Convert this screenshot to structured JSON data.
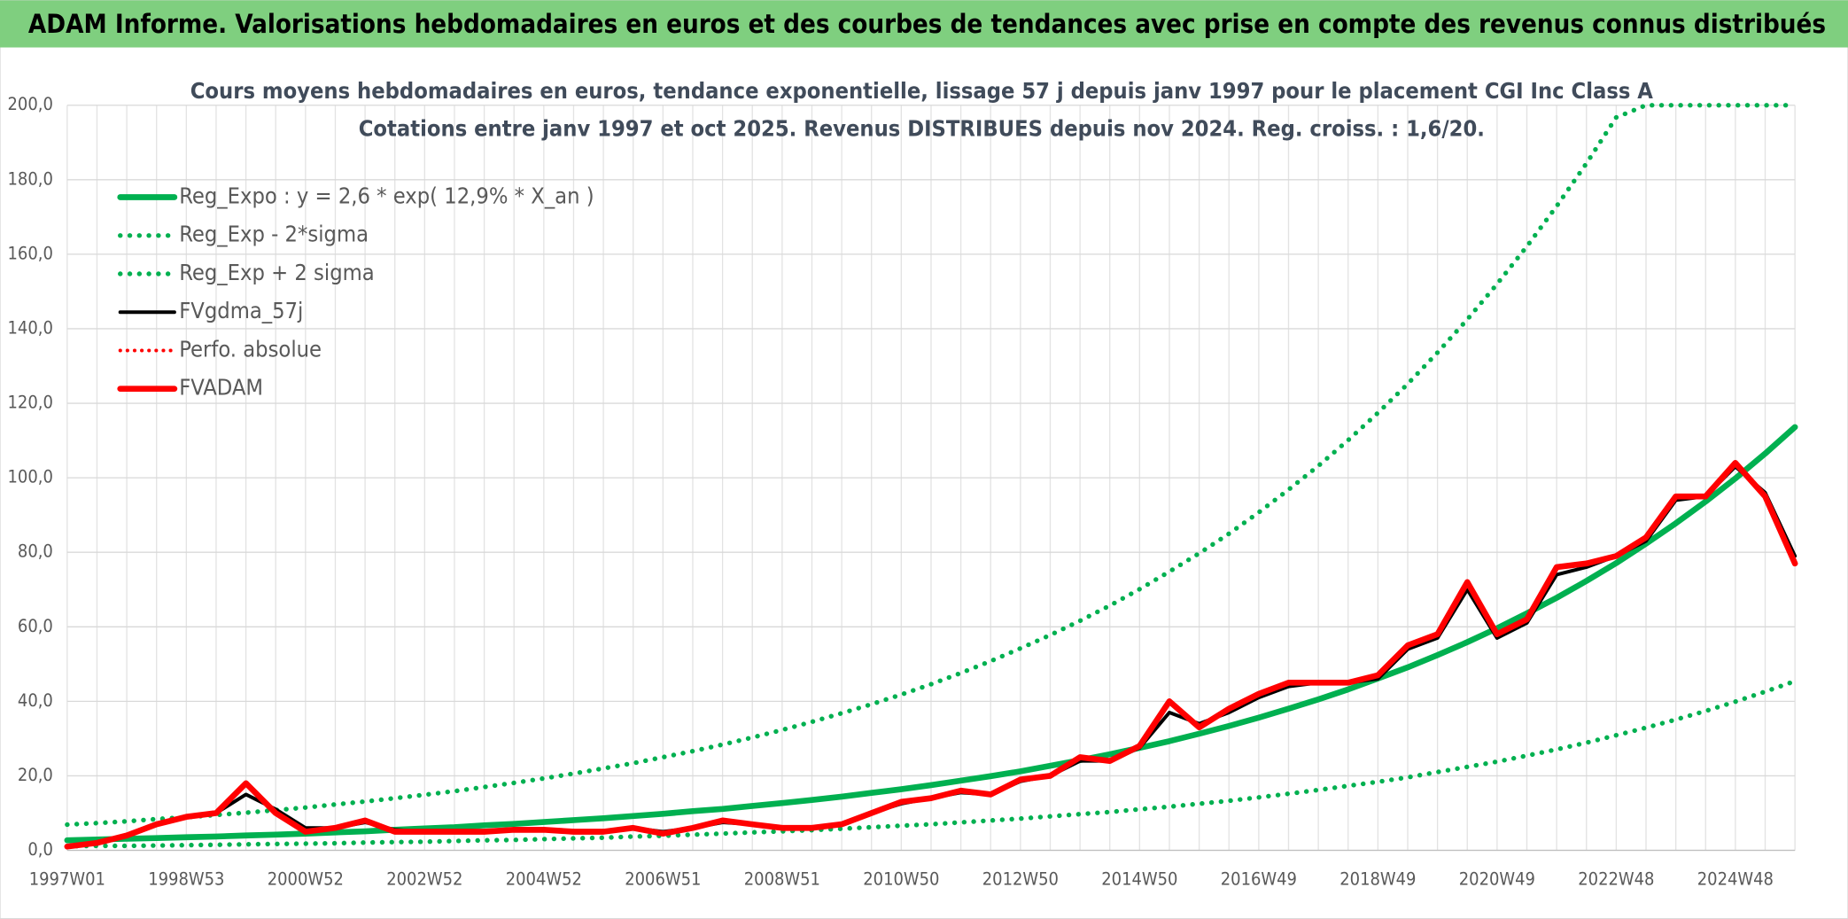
{
  "header": {
    "title": "ADAM Informe. Valorisations hebdomadaires en euros et des courbes de tendances avec prise en compte des revenus connus distribués"
  },
  "chart_data": {
    "type": "line",
    "title": "Cours moyens hebdomadaires en euros, tendance exponentielle, lissage 57 j depuis janv 1997 pour le placement CGI Inc Class A",
    "subtitle": "Cotations entre janv 1997 et oct 2025. Revenus DISTRIBUES depuis nov 2024. Reg. croiss. : 1,6/20.",
    "categories": [
      "1997W01",
      null,
      null,
      null,
      "1998W53",
      null,
      null,
      null,
      "2000W52",
      null,
      null,
      null,
      "2002W52",
      null,
      null,
      null,
      "2004W52",
      null,
      null,
      null,
      "2006W51",
      null,
      null,
      null,
      "2008W51",
      null,
      null,
      null,
      "2010W50",
      null,
      null,
      null,
      "2012W50",
      null,
      null,
      null,
      "2014W50",
      null,
      null,
      null,
      "2016W49",
      null,
      null,
      null,
      "2018W49",
      null,
      null,
      null,
      "2020W49",
      null,
      null,
      null,
      "2022W48",
      null,
      null,
      null,
      "2024W48",
      null,
      null
    ],
    "ylim": [
      0,
      200
    ],
    "yticks": [
      {
        "value": 0,
        "label": "0,0"
      },
      {
        "value": 20,
        "label": "20,0"
      },
      {
        "value": 40,
        "label": "40,0"
      },
      {
        "value": 60,
        "label": "60,0"
      },
      {
        "value": 80,
        "label": "80,0"
      },
      {
        "value": 100,
        "label": "100,0"
      },
      {
        "value": 120,
        "label": "120,0"
      },
      {
        "value": 140,
        "label": "140,0"
      },
      {
        "value": 160,
        "label": "160,0"
      },
      {
        "value": 180,
        "label": "180,0"
      },
      {
        "value": 200,
        "label": "200,0"
      }
    ],
    "grid": true,
    "legend": "top-left",
    "series": [
      {
        "name": "Reg_Expo : y = 2,6 * exp( 12,9% *  X_an )",
        "color": "#00b050",
        "style": "solid",
        "width": 5,
        "values": [
          2.7,
          2.9,
          3.1,
          3.3,
          3.5,
          3.7,
          4.0,
          4.2,
          4.5,
          4.8,
          5.1,
          5.5,
          5.9,
          6.2,
          6.7,
          7.1,
          7.6,
          8.1,
          8.6,
          9.2,
          9.8,
          10.5,
          11.1,
          11.9,
          12.7,
          13.5,
          14.4,
          15.4,
          16.4,
          17.5,
          18.7,
          19.9,
          21.2,
          22.7,
          24.2,
          25.8,
          27.5,
          29.3,
          31.3,
          33.4,
          35.6,
          38.0,
          40.5,
          43.2,
          46.1,
          49.1,
          52.4,
          55.9,
          59.6,
          63.6,
          67.8,
          72.3,
          77.1,
          82.3,
          87.8,
          93.6,
          99.8,
          106.5,
          113.6
        ]
      },
      {
        "name": "Reg_Exp - 2*sigma",
        "color": "#00b050",
        "style": "dotted",
        "width": 4,
        "values": [
          1.1,
          1.2,
          1.2,
          1.3,
          1.4,
          1.5,
          1.6,
          1.7,
          1.8,
          1.9,
          2.1,
          2.2,
          2.3,
          2.5,
          2.7,
          2.8,
          3.0,
          3.2,
          3.4,
          3.7,
          3.9,
          4.2,
          4.5,
          4.8,
          5.1,
          5.4,
          5.8,
          6.2,
          6.6,
          7.0,
          7.5,
          8.0,
          8.5,
          9.1,
          9.7,
          10.3,
          11.0,
          11.7,
          12.5,
          13.3,
          14.2,
          15.2,
          16.2,
          17.3,
          18.4,
          19.6,
          21.0,
          22.4,
          23.8,
          25.4,
          27.1,
          28.9,
          30.9,
          32.9,
          35.1,
          37.4,
          39.9,
          42.6,
          45.4
        ]
      },
      {
        "name": "Reg_Exp + 2 sigma",
        "color": "#00b050",
        "style": "dotted",
        "width": 4,
        "values": [
          6.9,
          7.3,
          7.8,
          8.4,
          8.9,
          9.5,
          10.1,
          10.8,
          11.5,
          12.3,
          13.1,
          14.0,
          14.9,
          15.9,
          17.0,
          18.1,
          19.3,
          20.6,
          22.0,
          23.4,
          25.0,
          26.6,
          28.4,
          30.3,
          32.3,
          34.5,
          36.8,
          39.2,
          41.8,
          44.6,
          47.6,
          50.8,
          54.2,
          57.8,
          61.6,
          65.7,
          70.1,
          74.8,
          79.7,
          85.0,
          90.7,
          96.8,
          103.2,
          110.1,
          117.4,
          125.2,
          133.6,
          142.5,
          152.0,
          162.1,
          172.9,
          184.4,
          196.7,
          200,
          200,
          200,
          200,
          200,
          200
        ]
      },
      {
        "name": "FVgdma_57j",
        "color": "#000000",
        "style": "solid",
        "width": 3,
        "values": [
          1,
          2,
          4,
          7,
          9,
          10,
          15,
          11,
          6,
          6,
          7.5,
          5.5,
          5,
          5,
          5,
          5.5,
          5.5,
          5,
          5,
          6,
          5,
          6,
          7.5,
          7,
          6,
          6,
          7,
          10,
          12.5,
          14,
          15.5,
          15,
          18.5,
          20,
          24,
          24,
          27.5,
          37,
          34,
          37,
          41,
          44,
          45,
          45,
          46,
          54,
          57,
          70,
          57,
          61,
          74,
          76,
          79,
          83,
          94,
          95,
          103,
          96,
          79
        ]
      },
      {
        "name": "Perfo. absolue",
        "color": "#ff0000",
        "style": "dotted",
        "width": 3,
        "values": [
          1,
          2,
          4,
          7,
          9,
          10,
          18,
          10,
          5,
          6,
          8,
          5,
          5,
          5,
          5,
          5.5,
          5.5,
          5,
          5,
          6,
          4.5,
          6,
          8,
          7,
          6,
          6,
          7,
          10,
          13,
          14,
          16,
          15,
          19,
          20,
          25,
          24,
          28,
          40,
          33,
          38,
          42,
          45,
          45,
          45,
          47,
          55,
          58,
          72,
          58,
          62,
          76,
          77,
          79,
          84,
          95,
          95,
          104,
          95,
          77
        ]
      },
      {
        "name": "FVADAM",
        "color": "#ff0000",
        "style": "solid",
        "width": 5,
        "values": [
          1,
          2,
          4,
          7,
          9,
          10,
          18,
          10,
          5,
          6,
          8,
          5,
          5,
          5,
          5,
          5.5,
          5.5,
          5,
          5,
          6,
          4.5,
          6,
          8,
          7,
          6,
          6,
          7,
          10,
          13,
          14,
          16,
          15,
          19,
          20,
          25,
          24,
          28,
          40,
          33,
          38,
          42,
          45,
          45,
          45,
          47,
          55,
          58,
          72,
          58,
          62,
          76,
          77,
          79,
          84,
          95,
          95,
          104,
          95,
          77
        ]
      }
    ]
  }
}
